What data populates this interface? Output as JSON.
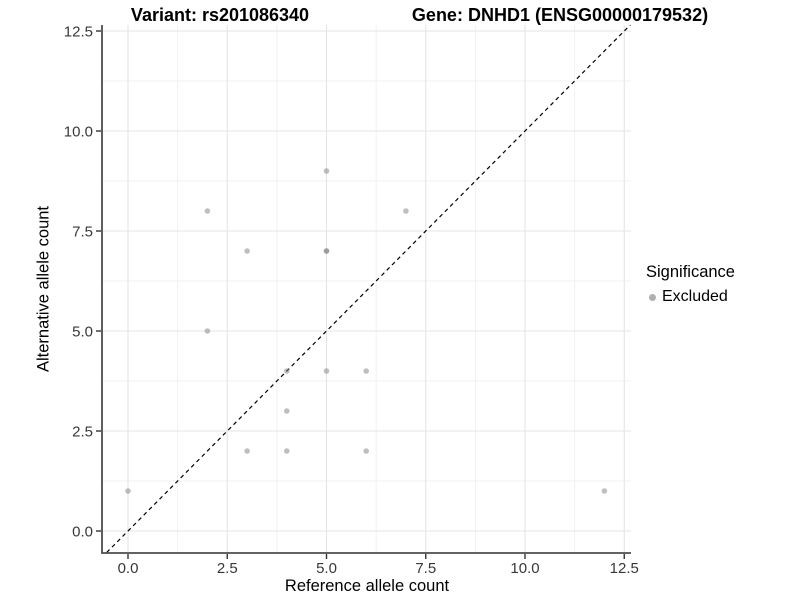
{
  "titles": {
    "left": "Variant: rs201086340",
    "right": "Gene: DNHD1 (ENSG00000179532)"
  },
  "legend": {
    "title": "Significance",
    "items": [
      {
        "label": "Excluded",
        "color": "#b0b0b0"
      }
    ]
  },
  "chart_data": {
    "type": "scatter",
    "title_left": "Variant: rs201086340",
    "title_right": "Gene: DNHD1 (ENSG00000179532)",
    "xlabel": "Reference allele count",
    "ylabel": "Alternative allele count",
    "xlim": [
      -0.655,
      12.67
    ],
    "ylim": [
      -0.55,
      12.65
    ],
    "x_ticks": [
      0,
      2.5,
      5,
      7.5,
      10,
      12.5
    ],
    "x_tick_labels": [
      "0.0",
      "2.5",
      "5.0",
      "7.5",
      "10.0",
      "12.5"
    ],
    "y_ticks": [
      0,
      2.5,
      5,
      7.5,
      10,
      12.5
    ],
    "y_tick_labels": [
      "0.0",
      "2.5",
      "5.0",
      "7.5",
      "10.0",
      "12.5"
    ],
    "x_minor_ticks": [
      1.25,
      3.75,
      6.25,
      8.75,
      11.25
    ],
    "y_minor_ticks": [
      1.25,
      3.75,
      6.25,
      8.75,
      11.25
    ],
    "grid": true,
    "legend_position": "right",
    "identity_line": {
      "type": "abline y=x",
      "style": "dashed",
      "color": "#000000"
    },
    "series": [
      {
        "name": "Excluded",
        "color": "#7f7f7f",
        "opacity": 0.5,
        "points": [
          [
            0,
            1
          ],
          [
            2,
            5
          ],
          [
            2,
            8
          ],
          [
            3,
            2
          ],
          [
            3,
            7
          ],
          [
            4,
            2
          ],
          [
            4,
            3
          ],
          [
            4,
            4
          ],
          [
            5,
            4
          ],
          [
            5,
            7
          ],
          [
            5,
            7
          ],
          [
            5,
            9
          ],
          [
            6,
            2
          ],
          [
            6,
            4
          ],
          [
            7,
            8
          ],
          [
            12,
            1
          ]
        ]
      }
    ],
    "colors": {
      "major_grid": "#e4e4e4",
      "minor_grid": "#f1f1f1",
      "axis_line": "#4d4d4d",
      "tick_mark": "#333333",
      "tick_text": "#383838"
    }
  }
}
